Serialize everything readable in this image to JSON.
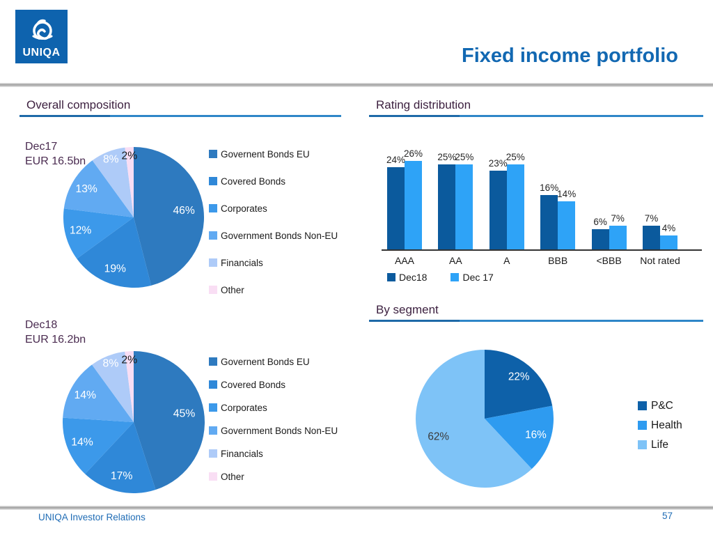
{
  "slide": {
    "title": "Fixed income portfolio",
    "logo_text": "UNIQA",
    "footer": {
      "left": "UNIQA Investor Relations",
      "page": "57"
    }
  },
  "colors": {
    "title_blue": "#1268B2",
    "header_purple": "#3D2140",
    "label_purple": "#4A2B50",
    "underline_blue": "#2E86C8",
    "underline_dark": "#1E6AA8",
    "logo_blue": "#0E63AE",
    "footer_blue": "#1F6CB5"
  },
  "sections": {
    "composition": {
      "heading": "Overall composition"
    },
    "rating": {
      "heading": "Rating distribution"
    },
    "segment": {
      "heading": "By segment"
    }
  },
  "chart_data": [
    {
      "type": "pie",
      "name": "composition_dec17",
      "caption": [
        "Dec17",
        "EUR 16.5bn"
      ],
      "legend_position": "right",
      "slices": [
        {
          "label": "Governent Bonds EU",
          "value": 46,
          "color": "#2E7ABF",
          "text_color": "#FFFFFF"
        },
        {
          "label": "Covered Bonds",
          "value": 19,
          "color": "#2F88D8",
          "text_color": "#FFFFFF"
        },
        {
          "label": "Corporates",
          "value": 12,
          "color": "#3C99EA",
          "text_color": "#FFFFFF"
        },
        {
          "label": "Government Bonds Non-EU",
          "value": 13,
          "color": "#61AAF2",
          "text_color": "#FFFFFF"
        },
        {
          "label": "Financials",
          "value": 8,
          "color": "#AECBF8",
          "text_color": "#FFFFFF"
        },
        {
          "label": "Other",
          "value": 2,
          "color": "#F9DEF4",
          "text_color": "#1A1A1A"
        }
      ]
    },
    {
      "type": "pie",
      "name": "composition_dec18",
      "caption": [
        "Dec18",
        "EUR 16.2bn"
      ],
      "legend_position": "right",
      "slices": [
        {
          "label": "Governent Bonds EU",
          "value": 45,
          "color": "#2E7ABF",
          "text_color": "#FFFFFF"
        },
        {
          "label": "Covered Bonds",
          "value": 17,
          "color": "#2F88D8",
          "text_color": "#FFFFFF"
        },
        {
          "label": "Corporates",
          "value": 14,
          "color": "#3C99EA",
          "text_color": "#FFFFFF"
        },
        {
          "label": "Government Bonds Non-EU",
          "value": 14,
          "color": "#61AAF2",
          "text_color": "#FFFFFF"
        },
        {
          "label": "Financials",
          "value": 8,
          "color": "#AECBF8",
          "text_color": "#FFFFFF"
        },
        {
          "label": "Other",
          "value": 2,
          "color": "#F9DEF4",
          "text_color": "#1A1A1A"
        }
      ]
    },
    {
      "type": "bar",
      "name": "rating_distribution",
      "categories": [
        "AAA",
        "AA",
        "A",
        "BBB",
        "<BBB",
        "Not rated"
      ],
      "series": [
        {
          "name": "Dec18",
          "color": "#0B5A9D",
          "values": [
            24,
            25,
            23,
            16,
            6,
            7
          ]
        },
        {
          "name": "Dec 17",
          "color": "#2EA3F7",
          "values": [
            26,
            25,
            25,
            14,
            7,
            4
          ]
        }
      ],
      "unit": "%",
      "ylim": [
        0,
        28
      ],
      "value_labels": true,
      "grid": false,
      "legend_position": "bottom"
    },
    {
      "type": "pie",
      "name": "by_segment",
      "legend_position": "right",
      "slices": [
        {
          "label": "P&C",
          "value": 22,
          "color": "#0E61A9",
          "text_color": "#FFFFFF"
        },
        {
          "label": "Health",
          "value": 16,
          "color": "#2E9BF0",
          "text_color": "#FFFFFF"
        },
        {
          "label": "Life",
          "value": 62,
          "color": "#7EC3F7",
          "text_color": "#3A3A3A"
        }
      ]
    }
  ]
}
